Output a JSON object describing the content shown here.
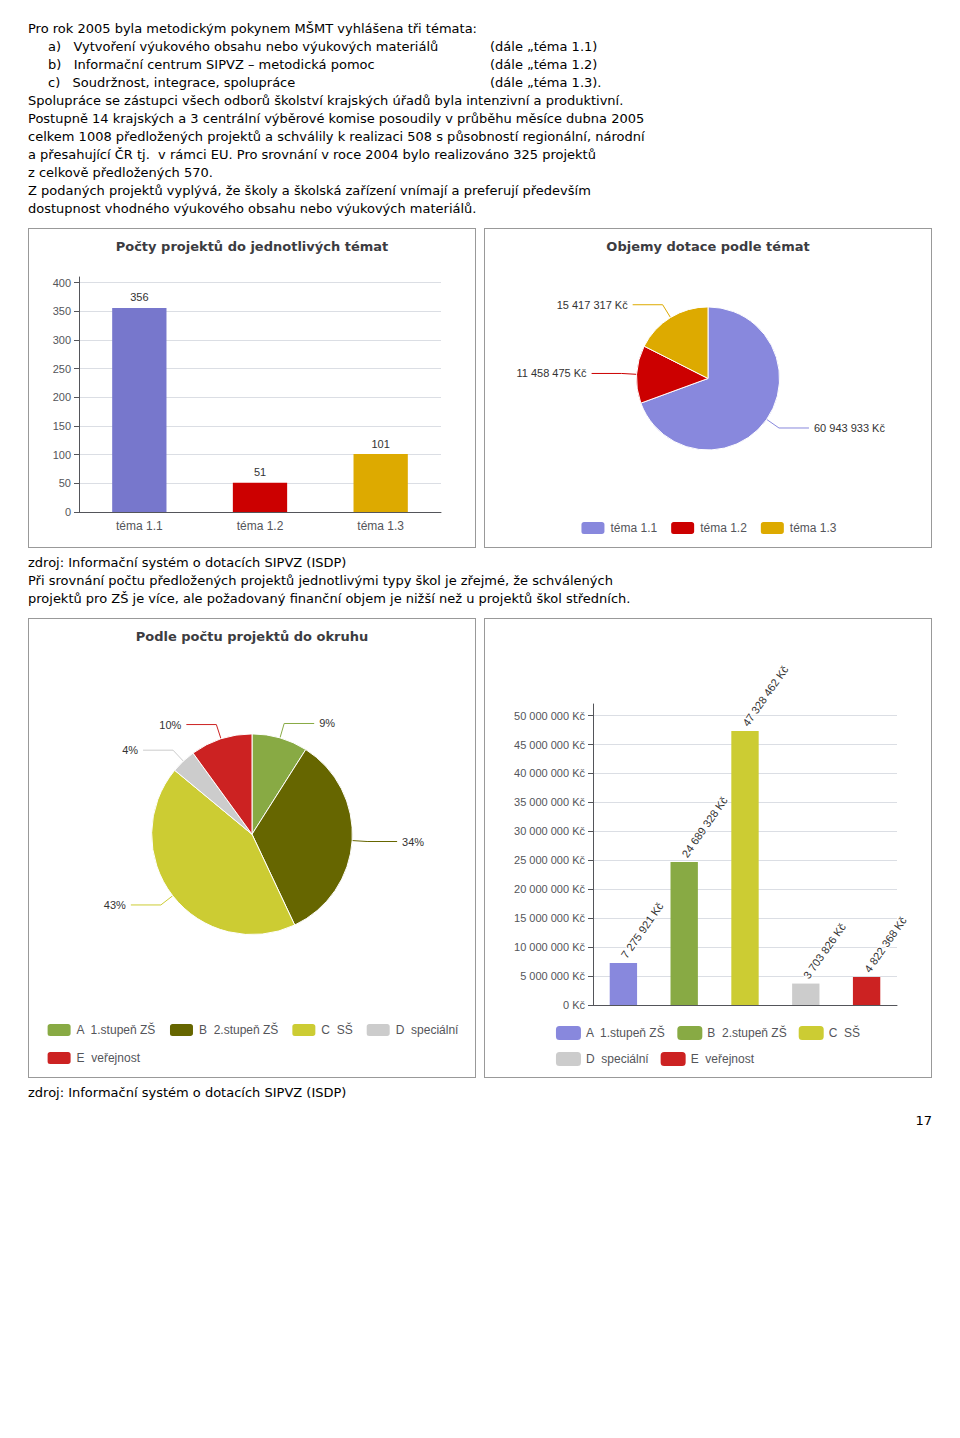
{
  "annotations": [
    [
      "Pro rok 2005 byla metodickým pokynem MŠMT vyhlášena tři témata:",
      [
        "a)   Vytvoření výukového obsahu nebo výukových materiálů",
        "(dále „téma 1.1)"
      ],
      [
        "b)   Informační centrum SIPVZ – metodická pomoc",
        "(dále „téma 1.2)"
      ],
      [
        "c)   Soudržnost, integrace, spolupráce",
        "(dále „téma 1.3)."
      ],
      "Spolupráce se zástupci všech odborů školství krajských úřadů byla intenzivní a produktivní.",
      "Postupně 14 krajských a 3 centrální výběrové komise posoudily v průběhu měsíce dubna 2005",
      "celkem 1008 předložených projektů a schválily k realizaci 508 s působností regionální, národní",
      "a přesahující ČR tj.  v rámci EU. Pro srovnání v roce 2004 bylo realizováno 325 projektů",
      "z celkově předložených 570.",
      "Z podaných projektů vyplývá, že školy a školská zařízení vnímají a preferují především",
      "dostupnost vhodného výukového obsahu nebo výukových materiálů."
    ],
    [
      "zdroj: Informační systém o dotacích SIPVZ (ISDP)",
      "Při srovnání počtu předložených projektů jednotlivými typy škol je zřejmé, že schválených",
      "projektů pro ZŠ je více, ale požadovaný finanční objem je nižší než u projektů škol středních."
    ],
    [
      "zdroj: Informační systém o dotacích SIPVZ (ISDP)",
      "17"
    ]
  ],
  "chart_data": [
    {
      "type": "bar",
      "title": "Počty projektů do jednotlivých témat",
      "categories": [
        "téma 1.1",
        "téma 1.2",
        "téma 1.3"
      ],
      "values": [
        356,
        51,
        101
      ],
      "colors": [
        "#7777CC",
        "#CC0000",
        "#DDAA00"
      ],
      "ylim": [
        0,
        410
      ],
      "yticks": [
        0,
        50,
        100,
        150,
        200,
        250,
        300,
        350,
        400
      ],
      "grid": true,
      "data_labels": true
    },
    {
      "type": "pie",
      "title": "Objemy dotace podle témat",
      "categories": [
        "téma 1.1",
        "téma 1.2",
        "téma 1.3"
      ],
      "values": [
        60943933,
        11458475,
        15417317
      ],
      "value_labels": [
        "60 943 933 Kč",
        "11 458 475 Kč",
        "15 417 317 Kč"
      ],
      "colors": [
        "#8888DD",
        "#CC0000",
        "#DDAA00"
      ],
      "legend": "bottom",
      "data_labels": true
    },
    {
      "type": "pie",
      "title": "Podle počtu projektů do okruhu",
      "categories": [
        "A  1.stupeň ZŠ",
        "B  2.stupeň ZŠ",
        "C  SŠ",
        "D  speciální",
        "E  veřejnost"
      ],
      "values": [
        9,
        34,
        43,
        4,
        10
      ],
      "value_labels": [
        "9%",
        "34%",
        "43%",
        "4%",
        "10%"
      ],
      "colors": [
        "#88AA44",
        "#666600",
        "#CCCC33",
        "#CCCCCC",
        "#CC2222"
      ],
      "legend": "bottom",
      "data_labels": true
    },
    {
      "type": "bar",
      "categories": [
        null,
        null,
        null,
        null,
        null
      ],
      "series": [
        {
          "name": "A  1.stupeň ZŠ",
          "color": "#8888DD",
          "values": [
            7275921,
            null,
            null,
            null,
            null
          ],
          "value_labels": [
            "7 275 921 Kč",
            null,
            null,
            null,
            null
          ]
        },
        {
          "name": "B  2.stupeň ZŠ",
          "color": "#88AA44",
          "values": [
            null,
            24689328,
            null,
            null,
            null
          ],
          "value_labels": [
            null,
            "24 689 328 Kč",
            null,
            null,
            null
          ]
        },
        {
          "name": "C  SŠ",
          "color": "#CCCC33",
          "values": [
            null,
            null,
            47328462,
            null,
            null
          ],
          "value_labels": [
            null,
            null,
            "47 328 462 Kč",
            null,
            null
          ]
        },
        {
          "name": "D  speciální",
          "color": "#CCCCCC",
          "values": [
            null,
            null,
            null,
            3703826,
            null
          ],
          "value_labels": [
            null,
            null,
            null,
            "3 703 826 Kč",
            null
          ]
        },
        {
          "name": "E  veřejnost",
          "color": "#CC2222",
          "values": [
            null,
            null,
            null,
            null,
            4822368
          ],
          "value_labels": [
            null,
            null,
            null,
            null,
            "4 822 368 Kč"
          ]
        }
      ],
      "ylim": [
        0,
        52000000
      ],
      "yticks": [
        {
          "value": 0,
          "label": "0 Kč"
        },
        {
          "value": 5000000,
          "label": "5 000 000 Kč"
        },
        {
          "value": 10000000,
          "label": "10 000 000 Kč"
        },
        {
          "value": 15000000,
          "label": "15 000 000 Kč"
        },
        {
          "value": 20000000,
          "label": "20 000 000 Kč"
        },
        {
          "value": 25000000,
          "label": "25 000 000 Kč"
        },
        {
          "value": 30000000,
          "label": "30 000 000 Kč"
        },
        {
          "value": 35000000,
          "label": "35 000 000 Kč"
        },
        {
          "value": 40000000,
          "label": "40 000 000 Kč"
        },
        {
          "value": 45000000,
          "label": "45 000 000 Kč"
        },
        {
          "value": 50000000,
          "label": "50 000 000 Kč"
        }
      ],
      "grid": true,
      "legend": "bottom",
      "data_labels": true,
      "tick_labels": "y"
    }
  ]
}
